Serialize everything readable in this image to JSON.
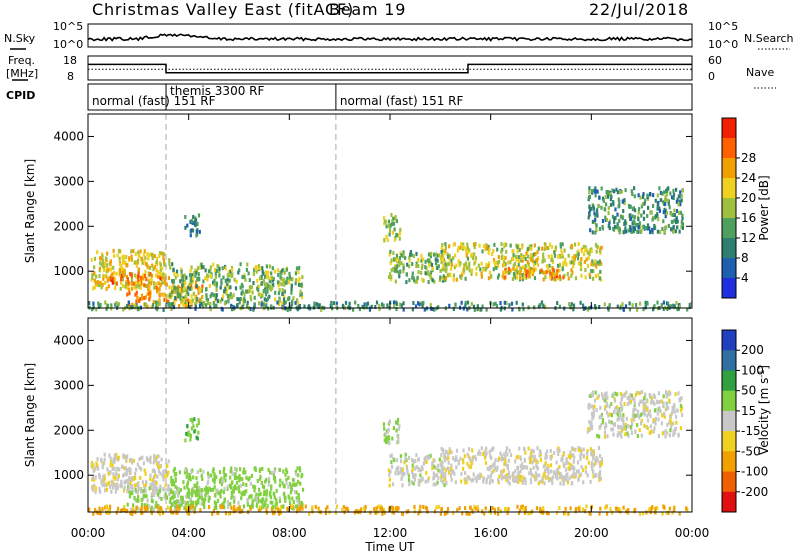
{
  "header": {
    "station": "Christmas Valley East (fitACF)",
    "beam": "Beam 19",
    "date": "22/Jul/2018"
  },
  "strip_labels": {
    "nsky": "N.Sky",
    "nsky_ticks": [
      "10^5",
      "10^0"
    ],
    "nsearch": "N.Search",
    "nsearch_ticks": [
      "10^5",
      "10^0"
    ],
    "freq_line1": "Freq.",
    "freq_line2": "[MHz]",
    "freq_ticks": [
      "18",
      "8"
    ],
    "nave": "Nave",
    "nave_ticks": [
      "60",
      "0"
    ],
    "cpid": "CPID"
  },
  "cpid_segments": [
    {
      "label": "normal (fast) 151 RF",
      "start_h": 0.0,
      "end_h": 3.1
    },
    {
      "label": "themis 3300 RF",
      "start_h": 3.1,
      "end_h": 9.85
    },
    {
      "label": "normal (fast) 151 RF",
      "start_h": 9.85,
      "end_h": 24.0
    }
  ],
  "time_axis": {
    "label": "Time UT",
    "ticks": [
      "00:00",
      "04:00",
      "08:00",
      "12:00",
      "16:00",
      "20:00",
      "00:00"
    ]
  },
  "range_axis": {
    "label": "Slant Range [km]",
    "ticks": [
      "1000",
      "2000",
      "3000",
      "4000"
    ]
  },
  "power_scale": {
    "label": "Power [dB]",
    "ticks": [
      "4",
      "8",
      "12",
      "16",
      "20",
      "24",
      "28"
    ],
    "colors": [
      "#1f2fe0",
      "#1f5fb0",
      "#2f7f6f",
      "#4f9f5f",
      "#9fc03f",
      "#f0d020",
      "#f0a000",
      "#ff6000",
      "#f02000"
    ]
  },
  "velocity_scale": {
    "label_main": "Velocity [m s",
    "label_sup": "-1",
    "label_end": "]",
    "ticks": [
      "200",
      "100",
      "50",
      "15",
      "-15",
      "-50",
      "-100",
      "-200"
    ],
    "colors": [
      "#2040c0",
      "#3070a0",
      "#30a040",
      "#80d040",
      "#c8c8c8",
      "#f0d020",
      "#f0a000",
      "#f06000",
      "#e01010"
    ]
  },
  "chart_data": {
    "type": "heatmap",
    "title": "Christmas Valley East (fitACF) Beam 19 22/Jul/2018",
    "xlabel": "Time UT",
    "ylabel": "Slant Range [km]",
    "xlim_hours": [
      0,
      24
    ],
    "ylim_km": [
      180,
      4500
    ],
    "freq_mhz_segments": [
      {
        "start_h": 0.0,
        "end_h": 3.1,
        "freq": 14.5
      },
      {
        "start_h": 3.1,
        "end_h": 15.1,
        "freq": 11.0
      },
      {
        "start_h": 15.1,
        "end_h": 24.0,
        "freq": 14.5
      }
    ],
    "nave_approx": 27,
    "scatter_regions": [
      {
        "name": "early night band",
        "t0": 0.1,
        "t1": 3.2,
        "r0": 650,
        "r1": 1500,
        "power_db": 22,
        "velocity": -5
      },
      {
        "name": "early night strong core",
        "t0": 0.8,
        "t1": 3.0,
        "r0": 750,
        "r1": 1000,
        "power_db": 28,
        "velocity": -5
      },
      {
        "name": "descending trail",
        "t0": 1.5,
        "t1": 4.5,
        "r0": 250,
        "r1": 800,
        "power_db": 26,
        "velocity": 20
      },
      {
        "name": "4-8h band",
        "t0": 3.2,
        "t1": 8.5,
        "r0": 300,
        "r1": 1200,
        "power_db": 16,
        "velocity": 30
      },
      {
        "name": "4h mid patch",
        "t0": 3.8,
        "t1": 4.4,
        "r0": 1800,
        "r1": 2300,
        "power_db": 10,
        "velocity": 40
      },
      {
        "name": "near-range clutter",
        "t0": 0.0,
        "t1": 24.0,
        "r0": 180,
        "r1": 350,
        "power_db": 12,
        "velocity": -60
      },
      {
        "name": "11-12h rising arc",
        "t0": 11.7,
        "t1": 12.4,
        "r0": 1700,
        "r1": 2300,
        "power_db": 18,
        "velocity": 20
      },
      {
        "name": "12-14h patch",
        "t0": 11.9,
        "t1": 14.2,
        "r0": 800,
        "r1": 1500,
        "power_db": 16,
        "velocity": 0
      },
      {
        "name": "14-20h band",
        "t0": 14.0,
        "t1": 20.4,
        "r0": 850,
        "r1": 1650,
        "power_db": 20,
        "velocity": -5
      },
      {
        "name": "17-19h core",
        "t0": 16.5,
        "t1": 19.0,
        "r0": 900,
        "r1": 1100,
        "power_db": 27,
        "velocity": -5
      },
      {
        "name": "20-24h rising band",
        "t0": 19.8,
        "t1": 23.6,
        "r0": 1900,
        "r1": 2900,
        "power_db": 12,
        "velocity": 0
      }
    ]
  }
}
